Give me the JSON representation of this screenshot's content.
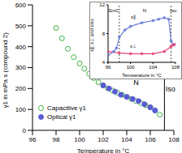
{
  "chart_data": [
    {
      "type": "scatter",
      "x_label": "Temperature in °C",
      "y_label": "γ1 in mPa s (compound 2)",
      "xlim": [
        96,
        108
      ],
      "xticks": [
        96,
        98,
        100,
        102,
        104,
        106,
        108
      ],
      "ylim": [
        0,
        600
      ],
      "yticks": [
        0,
        100,
        200,
        300,
        400,
        500,
        600
      ],
      "legend": "lower left",
      "series": [
        {
          "name": "Capacitive γ1",
          "color": "#3cb043",
          "marker": "open circle",
          "x": [
            98.0,
            98.5,
            99.0,
            99.5,
            100.0,
            100.4,
            100.8,
            101.2,
            101.6,
            102.0,
            102.4,
            102.8,
            103.2,
            103.6,
            104.0,
            104.4,
            104.8,
            105.2,
            105.6,
            106.0,
            106.4,
            106.8
          ],
          "values": [
            490,
            440,
            390,
            350,
            320,
            295,
            270,
            250,
            230,
            215,
            200,
            190,
            180,
            170,
            160,
            150,
            140,
            130,
            120,
            110,
            95,
            75
          ]
        },
        {
          "name": "Optical γ1",
          "color": "#5b5bd6",
          "marker": "filled circle",
          "x": [
            102.0,
            102.5,
            103.0,
            103.5,
            104.0,
            104.5,
            105.0,
            105.5,
            106.0,
            106.4
          ],
          "values": [
            215,
            200,
            185,
            170,
            160,
            150,
            140,
            125,
            110,
            95
          ]
        }
      ],
      "vlines": [
        {
          "x": 107.2,
          "y": [
            0,
            330
          ]
        }
      ],
      "annotations": [
        {
          "text": "N",
          "x": 104.8,
          "y": 230
        },
        {
          "text": "Iso",
          "x": 107.7,
          "y": 200
        }
      ]
    },
    {
      "type": "line",
      "x_label": "Temperature in °C",
      "y_label": "ε∥, ε⊥ and εiso",
      "xlim": [
        96,
        108
      ],
      "xticks": [
        96,
        100,
        104,
        108
      ],
      "ylim": [
        4,
        12
      ],
      "yticks": [
        4,
        8,
        12
      ],
      "series": [
        {
          "name": "ε∥",
          "color": "#6a7fd8",
          "marker": "filled circle",
          "x": [
            96,
            97,
            97.5,
            98,
            99,
            100,
            102,
            104,
            105,
            106,
            106.8,
            107.2,
            107.6,
            108
          ],
          "values": [
            5,
            5.5,
            6,
            7.5,
            8.5,
            9,
            9.5,
            9.8,
            10,
            10.2,
            10,
            7,
            6.5,
            6.5
          ]
        },
        {
          "name": "ε⊥",
          "color": "#e8437a",
          "marker": "filled circle",
          "x": [
            96,
            98,
            100,
            102,
            104,
            106,
            107.2,
            107.6,
            108
          ],
          "values": [
            5.5,
            5.3,
            5.2,
            5.2,
            5.2,
            5.5,
            6.2,
            6.4,
            6.5
          ]
        }
      ],
      "vlines": [
        {
          "x": 98,
          "y": [
            4,
            12
          ]
        },
        {
          "x": 107.2,
          "y": [
            4,
            12
          ]
        }
      ],
      "annotations": [
        {
          "text": "SmC",
          "x": 97,
          "y": 11.2
        },
        {
          "text": "N",
          "x": 102.5,
          "y": 11.2
        },
        {
          "text": "Iso",
          "x": 107.6,
          "y": 11.2
        },
        {
          "text": "ε∥",
          "x": 100.5,
          "y": 10.3
        },
        {
          "text": "ε⊥",
          "x": 100.5,
          "y": 6.3
        }
      ]
    }
  ]
}
